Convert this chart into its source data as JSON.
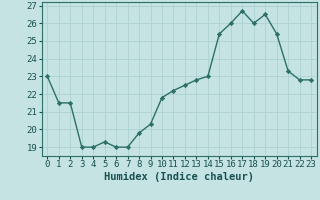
{
  "x": [
    0,
    1,
    2,
    3,
    4,
    5,
    6,
    7,
    8,
    9,
    10,
    11,
    12,
    13,
    14,
    15,
    16,
    17,
    18,
    19,
    20,
    21,
    22,
    23
  ],
  "y": [
    23.0,
    21.5,
    21.5,
    19.0,
    19.0,
    19.3,
    19.0,
    19.0,
    19.8,
    20.3,
    21.8,
    22.2,
    22.5,
    22.8,
    23.0,
    25.4,
    26.0,
    26.7,
    26.0,
    26.5,
    25.4,
    23.3,
    22.8,
    22.8
  ],
  "xlabel": "Humidex (Indice chaleur)",
  "ylim": [
    18.5,
    27.2
  ],
  "xlim": [
    -0.5,
    23.5
  ],
  "line_color": "#2d7068",
  "marker": "D",
  "marker_size": 2.2,
  "bg_color": "#c5e3e3",
  "grid_color": "#b0d4d4",
  "yticks": [
    19,
    20,
    21,
    22,
    23,
    24,
    25,
    26,
    27
  ],
  "xticks": [
    0,
    1,
    2,
    3,
    4,
    5,
    6,
    7,
    8,
    9,
    10,
    11,
    12,
    13,
    14,
    15,
    16,
    17,
    18,
    19,
    20,
    21,
    22,
    23
  ],
  "tick_label_color": "#1a5050",
  "xlabel_color": "#1a5050",
  "xlabel_fontsize": 7.5,
  "tick_fontsize": 6.5,
  "linewidth": 1.0
}
